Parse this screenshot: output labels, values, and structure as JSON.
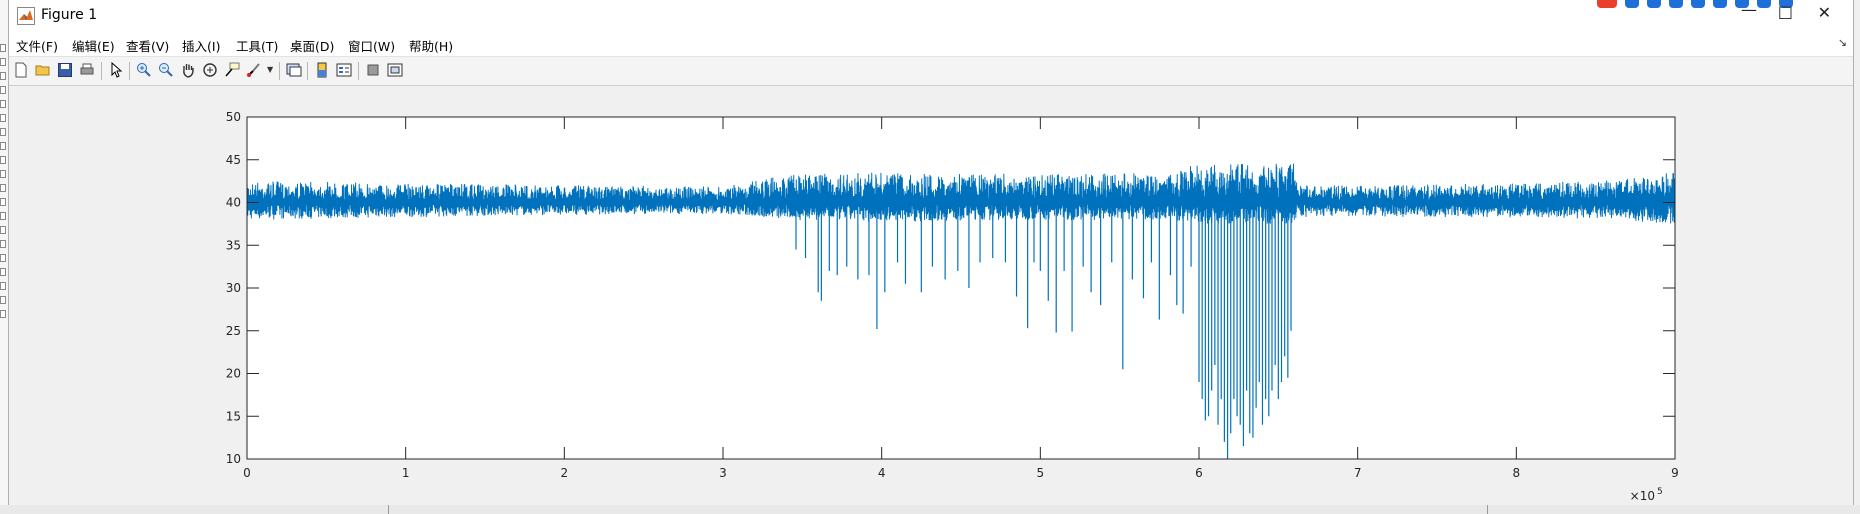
{
  "window": {
    "title": "Figure 1"
  },
  "menu": [
    "文件(F)",
    "编辑(E)",
    "查看(V)",
    "插入(I)",
    "工具(T)",
    "桌面(D)",
    "窗口(W)",
    "帮助(H)"
  ],
  "toolbar_icons": [
    "new-figure-icon",
    "open-file-icon",
    "save-icon",
    "print-icon",
    "edit-plot-arrow-icon",
    "zoom-in-icon",
    "zoom-out-icon",
    "pan-hand-icon",
    "rotate-3d-icon",
    "data-cursor-icon",
    "brush-icon",
    "link-plot-icon",
    "colorbar-icon",
    "legend-icon",
    "hide-plot-tools-icon",
    "show-plot-tools-icon"
  ],
  "colors": {
    "line": "#0072bd",
    "axes_bg": "#ffffff",
    "figure_bg": "#f0f0f0"
  },
  "chart_data": {
    "type": "line",
    "xlim": [
      0,
      900000
    ],
    "ylim": [
      10,
      50
    ],
    "x_ticks": [
      0,
      1,
      2,
      3,
      4,
      5,
      6,
      7,
      8,
      9
    ],
    "y_ticks": [
      10,
      15,
      20,
      25,
      30,
      35,
      40,
      45,
      50
    ],
    "x_exponent_label": "×10",
    "x_exponent_power": "5",
    "grid": false,
    "baseline": 40,
    "envelope": [
      {
        "x": 0,
        "low": 38,
        "high": 42.5
      },
      {
        "x": 100000,
        "low": 38.3,
        "high": 42.2
      },
      {
        "x": 200000,
        "low": 38.6,
        "high": 42
      },
      {
        "x": 300000,
        "low": 38.7,
        "high": 41.8
      },
      {
        "x": 340000,
        "low": 38,
        "high": 43.3
      },
      {
        "x": 400000,
        "low": 37.8,
        "high": 43.5
      },
      {
        "x": 500000,
        "low": 38,
        "high": 43.3
      },
      {
        "x": 580000,
        "low": 38,
        "high": 43.5
      },
      {
        "x": 600000,
        "low": 37.5,
        "high": 44.5
      },
      {
        "x": 660000,
        "low": 37.5,
        "high": 44.5
      },
      {
        "x": 662000,
        "low": 38.3,
        "high": 42
      },
      {
        "x": 700000,
        "low": 38.4,
        "high": 42
      },
      {
        "x": 800000,
        "low": 38.3,
        "high": 42.2
      },
      {
        "x": 860000,
        "low": 38,
        "high": 42.8
      },
      {
        "x": 900000,
        "low": 37.5,
        "high": 43.5
      }
    ],
    "dips": [
      {
        "x": 346000,
        "y": 34.5
      },
      {
        "x": 352000,
        "y": 33.5
      },
      {
        "x": 360000,
        "y": 29.5
      },
      {
        "x": 362000,
        "y": 28.5
      },
      {
        "x": 367000,
        "y": 32
      },
      {
        "x": 372000,
        "y": 31.5
      },
      {
        "x": 378000,
        "y": 32.5
      },
      {
        "x": 385000,
        "y": 31
      },
      {
        "x": 392000,
        "y": 31.5
      },
      {
        "x": 397000,
        "y": 25.2
      },
      {
        "x": 402000,
        "y": 29.5
      },
      {
        "x": 410000,
        "y": 33
      },
      {
        "x": 415000,
        "y": 30.5
      },
      {
        "x": 425000,
        "y": 29.5
      },
      {
        "x": 432000,
        "y": 32.5
      },
      {
        "x": 440000,
        "y": 31
      },
      {
        "x": 448000,
        "y": 32
      },
      {
        "x": 455000,
        "y": 30
      },
      {
        "x": 462000,
        "y": 33
      },
      {
        "x": 470000,
        "y": 33.5
      },
      {
        "x": 478000,
        "y": 33
      },
      {
        "x": 485000,
        "y": 29
      },
      {
        "x": 492000,
        "y": 25.3
      },
      {
        "x": 496000,
        "y": 33
      },
      {
        "x": 500000,
        "y": 32
      },
      {
        "x": 505000,
        "y": 28.5
      },
      {
        "x": 510000,
        "y": 24.8
      },
      {
        "x": 515000,
        "y": 32
      },
      {
        "x": 520000,
        "y": 24.9
      },
      {
        "x": 527000,
        "y": 32.5
      },
      {
        "x": 532000,
        "y": 29.5
      },
      {
        "x": 538000,
        "y": 28
      },
      {
        "x": 545000,
        "y": 33
      },
      {
        "x": 552000,
        "y": 20.5
      },
      {
        "x": 558000,
        "y": 31
      },
      {
        "x": 565000,
        "y": 28.8
      },
      {
        "x": 570000,
        "y": 33
      },
      {
        "x": 575000,
        "y": 26.3
      },
      {
        "x": 582000,
        "y": 31.5
      },
      {
        "x": 586000,
        "y": 28
      },
      {
        "x": 590000,
        "y": 27
      },
      {
        "x": 595000,
        "y": 32.5
      },
      {
        "x": 600000,
        "y": 19
      },
      {
        "x": 602000,
        "y": 17
      },
      {
        "x": 604000,
        "y": 14.5
      },
      {
        "x": 606000,
        "y": 15
      },
      {
        "x": 608000,
        "y": 18
      },
      {
        "x": 610000,
        "y": 21
      },
      {
        "x": 612000,
        "y": 14
      },
      {
        "x": 614000,
        "y": 17
      },
      {
        "x": 616000,
        "y": 12
      },
      {
        "x": 618000,
        "y": 10
      },
      {
        "x": 620000,
        "y": 13
      },
      {
        "x": 622000,
        "y": 17
      },
      {
        "x": 624000,
        "y": 15
      },
      {
        "x": 626000,
        "y": 14
      },
      {
        "x": 628000,
        "y": 11.5
      },
      {
        "x": 630000,
        "y": 18
      },
      {
        "x": 632000,
        "y": 13
      },
      {
        "x": 634000,
        "y": 12.5
      },
      {
        "x": 636000,
        "y": 16
      },
      {
        "x": 638000,
        "y": 19
      },
      {
        "x": 640000,
        "y": 14
      },
      {
        "x": 642000,
        "y": 17
      },
      {
        "x": 644000,
        "y": 15
      },
      {
        "x": 646000,
        "y": 18
      },
      {
        "x": 648000,
        "y": 21
      },
      {
        "x": 650000,
        "y": 17
      },
      {
        "x": 652000,
        "y": 19
      },
      {
        "x": 654000,
        "y": 22
      },
      {
        "x": 656000,
        "y": 19.5
      },
      {
        "x": 658000,
        "y": 25
      }
    ]
  }
}
